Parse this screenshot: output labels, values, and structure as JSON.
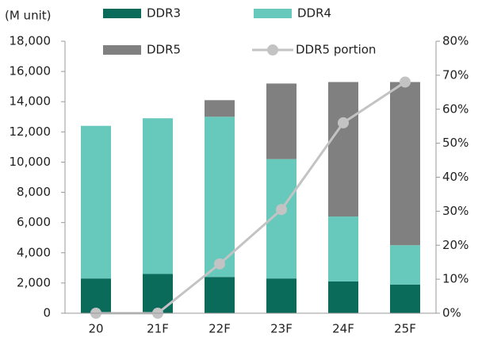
{
  "chart_data": {
    "type": "stacked-bar-line",
    "y_label": "(M unit)",
    "categories": [
      "20",
      "21F",
      "22F",
      "23F",
      "24F",
      "25F"
    ],
    "series": [
      {
        "name": "DDR3",
        "color": "#0b6b5b",
        "values": [
          2300,
          2600,
          2400,
          2300,
          2100,
          1900
        ]
      },
      {
        "name": "DDR4",
        "color": "#67c9bc",
        "values": [
          10100,
          10300,
          10600,
          7900,
          4300,
          2600
        ]
      },
      {
        "name": "DDR5",
        "color": "#808080",
        "values": [
          0,
          0,
          1100,
          5000,
          8900,
          10800
        ]
      },
      {
        "name": "DDR5 portion",
        "color": "#c3c3c3",
        "axis": "y2",
        "type": "line",
        "values": [
          0,
          0,
          14.5,
          30.5,
          56,
          68
        ]
      }
    ],
    "ylim": [
      0,
      18000
    ],
    "yticks": [
      0,
      {
        "value": 2000,
        "label": "2,000"
      },
      {
        "value": 4000,
        "label": "4,000"
      },
      {
        "value": 6000,
        "label": "6,000"
      },
      {
        "value": 8000,
        "label": "8,000"
      },
      {
        "value": 10000,
        "label": "10,000"
      },
      {
        "value": 12000,
        "label": "12,000"
      },
      {
        "value": 14000,
        "label": "14,000"
      },
      {
        "value": 16000,
        "label": "16,000"
      },
      {
        "value": 18000,
        "label": "18,000"
      }
    ],
    "y2lim": [
      0,
      80
    ],
    "y2ticks": [
      {
        "value": 0,
        "label": "0%"
      },
      {
        "value": 10,
        "label": "10%"
      },
      {
        "value": 20,
        "label": "20%"
      },
      {
        "value": 30,
        "label": "30%"
      },
      {
        "value": 40,
        "label": "40%"
      },
      {
        "value": 50,
        "label": "50%"
      },
      {
        "value": 60,
        "label": "60%"
      },
      {
        "value": 70,
        "label": "70%"
      },
      {
        "value": 80,
        "label": "80%"
      }
    ]
  }
}
